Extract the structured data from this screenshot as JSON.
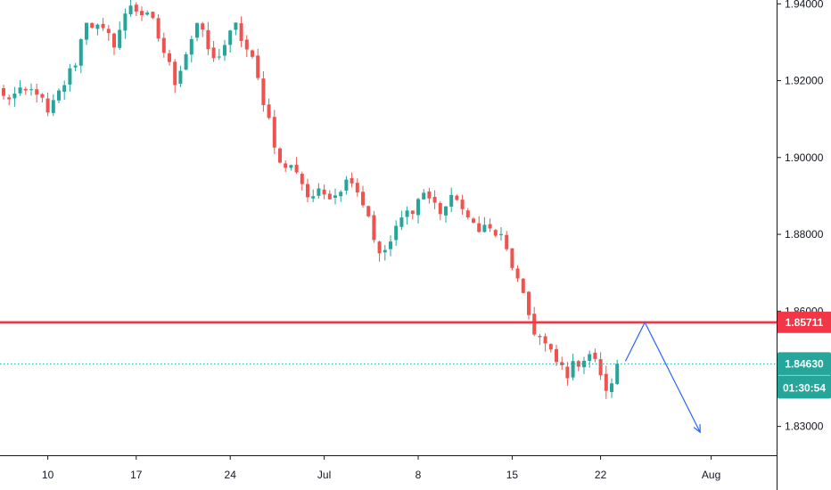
{
  "chart_data": {
    "type": "candlestick",
    "title": "",
    "xlabel": "",
    "ylabel": "",
    "ylim": [
      1.8225,
      1.941
    ],
    "y_ticks": [
      "1.94000",
      "1.92000",
      "1.90000",
      "1.88000",
      "1.86000",
      "1.83000"
    ],
    "y_tick_values": [
      1.94,
      1.92,
      1.9,
      1.88,
      1.86,
      1.83
    ],
    "x_ticks": [
      "10",
      "17",
      "24",
      "Jul",
      "8",
      "15",
      "22",
      "Aug"
    ],
    "x_tick_index": [
      8,
      24,
      41,
      58,
      75,
      92,
      108,
      128
    ],
    "bar_count": 112,
    "up_color": "#26a69a",
    "down_color": "#ef5350",
    "grid": false,
    "legend": "none",
    "close_path": [
      [
        0,
        1.9155
      ],
      [
        6,
        1.9175
      ],
      [
        8,
        1.911
      ],
      [
        13,
        1.925
      ],
      [
        15,
        1.936
      ],
      [
        20,
        1.93
      ],
      [
        23,
        1.94
      ],
      [
        27,
        1.935
      ],
      [
        31,
        1.92
      ],
      [
        35,
        1.935
      ],
      [
        38,
        1.925
      ],
      [
        42,
        1.934
      ],
      [
        45,
        1.925
      ],
      [
        48,
        1.91
      ],
      [
        50,
        1.898
      ],
      [
        53,
        1.897
      ],
      [
        55,
        1.89
      ],
      [
        60,
        1.891
      ],
      [
        63,
        1.895
      ],
      [
        66,
        1.885
      ],
      [
        68,
        1.874
      ],
      [
        70,
        1.878
      ],
      [
        72,
        1.884
      ],
      [
        74,
        1.887
      ],
      [
        76,
        1.891
      ],
      [
        79,
        1.886
      ],
      [
        82,
        1.89
      ],
      [
        84,
        1.883
      ],
      [
        87,
        1.882
      ],
      [
        90,
        1.879
      ],
      [
        92,
        1.872
      ],
      [
        94,
        1.863
      ],
      [
        96,
        1.855
      ],
      [
        98,
        1.851
      ],
      [
        100,
        1.8465
      ],
      [
        102,
        1.844
      ],
      [
        104,
        1.847
      ],
      [
        106,
        1.849
      ],
      [
        108,
        1.844
      ],
      [
        109,
        1.838
      ],
      [
        111,
        1.8463
      ]
    ],
    "resistance_level": {
      "price": 1.85711,
      "label": "1.85711",
      "color": "#f23645"
    },
    "current_price": {
      "price": 1.8463,
      "label": "1.84630",
      "countdown": "01:30:54",
      "color": "#26a69a"
    },
    "projection": {
      "color": "#2962ff",
      "points": [
        [
          112.5,
          1.847
        ],
        [
          116,
          1.8571
        ],
        [
          126,
          1.8285
        ]
      ]
    }
  }
}
